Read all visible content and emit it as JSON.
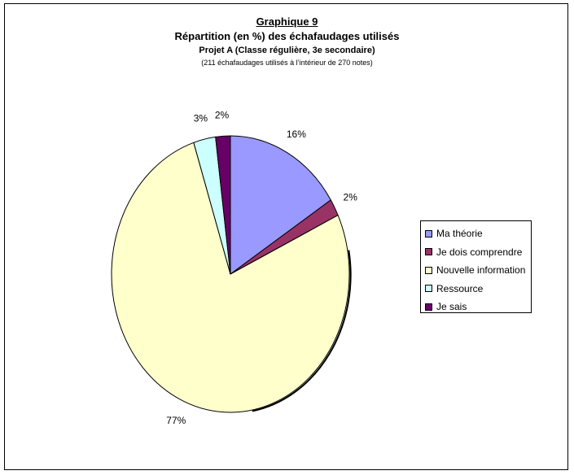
{
  "titles": {
    "title": "Graphique 9",
    "subtitle": "Répartition (en %) des échafaudages utilisés",
    "project": "Projet A (Classe régulière, 3e secondaire)",
    "note": "(211 échafaudages utilisés à l’intérieur de 270 notes)"
  },
  "chart_data": {
    "type": "pie",
    "title": "Graphique 9",
    "categories": [
      "Ma théorie",
      "Je dois comprendre",
      "Nouvelle information",
      "Ressource",
      "Je sais"
    ],
    "values": [
      16,
      2,
      77,
      3,
      2
    ],
    "labels": [
      "16%",
      "2%",
      "77%",
      "3%",
      "2%"
    ],
    "colors": [
      "#9999FF",
      "#993366",
      "#FFFFCC",
      "#CCFFFF",
      "#660066"
    ],
    "legend": "right"
  }
}
